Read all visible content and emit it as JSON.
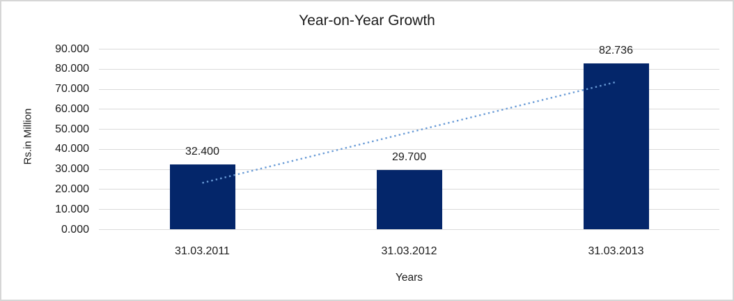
{
  "colors": {
    "bar": "#04266a",
    "trend": "#699bd6",
    "grid": "#dadada",
    "border": "#d6d6d6",
    "text": "#1a1a1a",
    "bg": "#ffffff"
  },
  "chart_data": {
    "type": "bar",
    "title": "Year-on-Year Growth",
    "categories": [
      "31.03.2011",
      "31.03.2012",
      "31.03.2013"
    ],
    "values": [
      32.4,
      29.7,
      82.736
    ],
    "value_labels": [
      "32.400",
      "29.700",
      "82.736"
    ],
    "xlabel": "Years",
    "ylabel": "Rs.in Million",
    "ylim": [
      0,
      90
    ],
    "ytick_step": 10,
    "ytick_labels": [
      "0.000",
      "10.000",
      "20.000",
      "30.000",
      "40.000",
      "50.000",
      "60.000",
      "70.000",
      "80.000",
      "90.000"
    ],
    "grid": true,
    "legend_position": "none",
    "trendline": {
      "type": "linear",
      "style": "dotted",
      "start_value": 23.1,
      "end_value": 73.4
    }
  }
}
